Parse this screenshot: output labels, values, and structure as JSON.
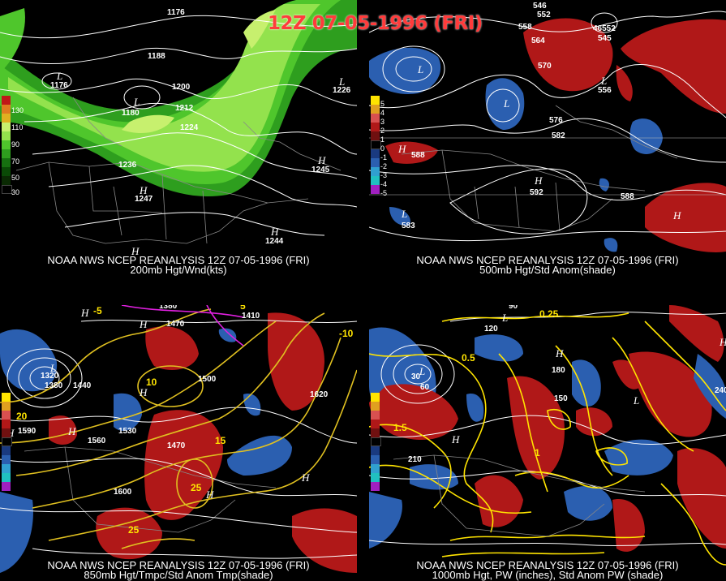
{
  "header": {
    "title": "12Z 07-05-1996 (FRI)"
  },
  "panels": {
    "p1": {
      "line1": "NOAA NWS NCEP REANALYSIS 12Z 07-05-1996 (FRI)",
      "line2": "200mb Hgt/Wnd(kts)",
      "legend": [
        "130",
        "110",
        "90",
        "70",
        "50",
        "30"
      ],
      "contours": [
        "1176",
        "1188",
        "1200",
        "1212",
        "1224",
        "1236",
        "1245",
        "1226",
        "1180",
        "1176",
        "1247",
        "1244"
      ]
    },
    "p2": {
      "line1": "NOAA NWS NCEP REANALYSIS 12Z 07-05-1996 (FRI)",
      "line2": "500mb Hgt/Std Anom(shade)",
      "legend": [
        "5",
        "4",
        "3",
        "2",
        "1",
        "0",
        "-1",
        "-2",
        "-3",
        "-4",
        "-5"
      ],
      "contours": [
        "546",
        "552",
        "558",
        "564",
        "570",
        "576",
        "582",
        "588",
        "592",
        "583",
        "588",
        "556",
        "545",
        "46552"
      ]
    },
    "p3": {
      "line1": "NOAA NWS NCEP REANALYSIS 12Z 07-05-1996 (FRI)",
      "line2": "850mb Hgt/Tmpc/Std Anom Tmp(shade)",
      "contours": [
        "1320",
        "1380",
        "1440",
        "1470",
        "1500",
        "1530",
        "1560",
        "1590",
        "1600",
        "1620",
        "1410",
        "1470",
        "1380"
      ],
      "temps": [
        "5",
        "10",
        "15",
        "20",
        "25",
        "-5",
        "-10",
        "25"
      ]
    },
    "p4": {
      "line1": "NOAA NWS NCEP REANALYSIS 12Z 07-05-1996 (FRI)",
      "line2": "1000mb Hgt, PW (inches), Std Anom PW (shade)",
      "contours": [
        "90",
        "120",
        "150",
        "180",
        "210",
        "240",
        "60",
        "30"
      ],
      "pw": [
        "0.25",
        "0.5",
        "1",
        "1.5"
      ]
    }
  },
  "colors": {
    "jet1": "#2e9e1e",
    "jet2": "#4fc62c",
    "jet3": "#93e24d",
    "jet4": "#c7f06e",
    "anomPos": "#b01818",
    "anomNeg": "#2b5fb0",
    "temp": "#e0c020",
    "pw": "#ffe400",
    "contour": "#ffffff",
    "border": "#888888"
  }
}
